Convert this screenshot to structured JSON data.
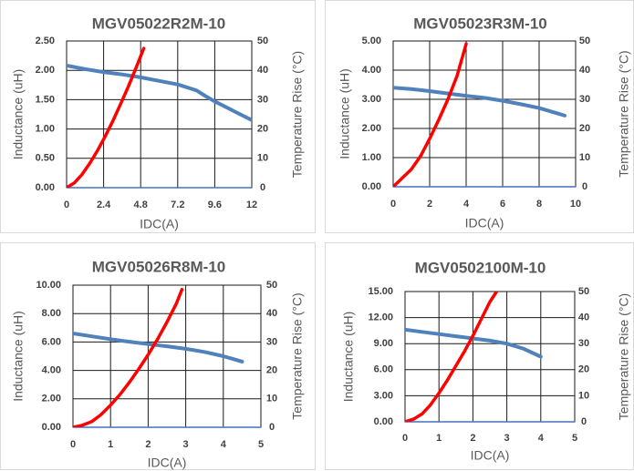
{
  "chart_data": [
    {
      "type": "line",
      "title": "MGV05022R2M-10",
      "xlabel": "IDC(A)",
      "ylabel": "Inductance (uH)",
      "y2label": "Temperature Rise (°C)",
      "xlim": [
        0,
        12
      ],
      "xticks": [
        "0",
        "2.4",
        "4.8",
        "7.2",
        "9.6",
        "12"
      ],
      "ylim": [
        0,
        2.5
      ],
      "yticks": [
        "0.00",
        "0.50",
        "1.00",
        "1.50",
        "2.00",
        "2.50"
      ],
      "y2lim": [
        0,
        50
      ],
      "y2ticks": [
        "0",
        "10",
        "20",
        "30",
        "40",
        "50"
      ],
      "grid": true,
      "series": [
        {
          "name": "Inductance",
          "axis": "left",
          "color": "#4f81bd",
          "x": [
            0,
            1.2,
            2.4,
            3.6,
            4.8,
            6.0,
            7.2,
            8.4,
            9.0,
            9.6,
            10.8,
            12.0
          ],
          "y": [
            2.08,
            2.02,
            1.97,
            1.93,
            1.88,
            1.82,
            1.76,
            1.66,
            1.56,
            1.47,
            1.31,
            1.15
          ]
        },
        {
          "name": "Temperature Rise",
          "axis": "right",
          "color": "#ff0000",
          "x": [
            0,
            0.5,
            1.0,
            1.5,
            2.0,
            2.5,
            3.0,
            3.5,
            4.0,
            4.5,
            5.0
          ],
          "y": [
            0,
            1.6,
            4.5,
            8.3,
            12.6,
            17.5,
            22.8,
            28.5,
            34.5,
            40.8,
            47.5
          ]
        }
      ]
    },
    {
      "type": "line",
      "title": "MGV05023R3M-10",
      "xlabel": "IDC(A)",
      "ylabel": "Inductance (uH)",
      "y2label": "Temperature Rise (°C)",
      "xlim": [
        0,
        10
      ],
      "xticks": [
        "0",
        "2",
        "4",
        "6",
        "8",
        "10"
      ],
      "ylim": [
        0,
        5
      ],
      "yticks": [
        "0.00",
        "1.00",
        "2.00",
        "3.00",
        "4.00",
        "5.00"
      ],
      "y2lim": [
        0,
        50
      ],
      "y2ticks": [
        "0",
        "10",
        "20",
        "30",
        "40",
        "50"
      ],
      "grid": true,
      "series": [
        {
          "name": "Inductance",
          "axis": "left",
          "color": "#4f81bd",
          "x": [
            0,
            1,
            2,
            3,
            4,
            5,
            6,
            7,
            8,
            9,
            9.4
          ],
          "y": [
            3.4,
            3.35,
            3.28,
            3.2,
            3.12,
            3.05,
            2.95,
            2.83,
            2.7,
            2.52,
            2.44
          ]
        },
        {
          "name": "Temperature Rise",
          "axis": "right",
          "color": "#ff0000",
          "x": [
            0,
            0.5,
            1.0,
            1.5,
            2.0,
            2.5,
            3.0,
            3.5,
            4.0
          ],
          "y": [
            0,
            3.0,
            6.0,
            10.5,
            16.5,
            23.0,
            30.0,
            38.0,
            49.0
          ]
        }
      ]
    },
    {
      "type": "line",
      "title": "MGV05026R8M-10",
      "xlabel": "IDC(A)",
      "ylabel": "Inductance (uH)",
      "y2label": "Temperature Rise (°C)",
      "xlim": [
        0,
        5
      ],
      "xticks": [
        "0",
        "1",
        "2",
        "3",
        "4",
        "5"
      ],
      "ylim": [
        0,
        10
      ],
      "yticks": [
        "0.00",
        "2.00",
        "4.00",
        "6.00",
        "8.00",
        "10.00"
      ],
      "y2lim": [
        0,
        50
      ],
      "y2ticks": [
        "0",
        "10",
        "20",
        "30",
        "40",
        "50"
      ],
      "grid": true,
      "series": [
        {
          "name": "Inductance",
          "axis": "left",
          "color": "#4f81bd",
          "x": [
            0,
            0.5,
            1.0,
            1.5,
            2.0,
            2.5,
            3.0,
            3.5,
            4.0,
            4.5
          ],
          "y": [
            6.6,
            6.4,
            6.2,
            6.02,
            5.85,
            5.7,
            5.52,
            5.3,
            5.0,
            4.62
          ]
        },
        {
          "name": "Temperature Rise",
          "axis": "right",
          "color": "#ff0000",
          "x": [
            0,
            0.25,
            0.5,
            0.75,
            1.0,
            1.25,
            1.5,
            1.75,
            2.0,
            2.25,
            2.5,
            2.75,
            2.9
          ],
          "y": [
            0,
            0.7,
            2.0,
            4.5,
            7.8,
            11.5,
            15.8,
            20.5,
            25.5,
            31.0,
            37.0,
            43.5,
            48.5
          ]
        }
      ]
    },
    {
      "type": "line",
      "title": "MGV0502100M-10",
      "xlabel": "IDC(A)",
      "ylabel": "Inductance (uH)",
      "y2label": "Temperature Rise (°C)",
      "xlim": [
        0,
        5
      ],
      "xticks": [
        "0",
        "1",
        "2",
        "3",
        "4",
        "5"
      ],
      "ylim": [
        0,
        15
      ],
      "yticks": [
        "0.00",
        "3.00",
        "6.00",
        "9.00",
        "12.00",
        "15.00"
      ],
      "y2lim": [
        0,
        50
      ],
      "y2ticks": [
        "0",
        "10",
        "20",
        "30",
        "40",
        "50"
      ],
      "grid": true,
      "series": [
        {
          "name": "Inductance",
          "axis": "left",
          "color": "#4f81bd",
          "x": [
            0,
            0.5,
            1.0,
            1.5,
            2.0,
            2.5,
            3.0,
            3.5,
            4.0
          ],
          "y": [
            10.6,
            10.35,
            10.1,
            9.85,
            9.6,
            9.35,
            9.0,
            8.4,
            7.5
          ]
        },
        {
          "name": "Temperature Rise",
          "axis": "right",
          "color": "#ff0000",
          "x": [
            0,
            0.25,
            0.5,
            0.75,
            1.0,
            1.25,
            1.5,
            1.75,
            2.0,
            2.25,
            2.5,
            2.7
          ],
          "y": [
            0,
            1.0,
            3.0,
            6.5,
            11.0,
            16.0,
            21.5,
            27.0,
            33.0,
            39.5,
            46.0,
            50.0
          ]
        }
      ]
    }
  ]
}
